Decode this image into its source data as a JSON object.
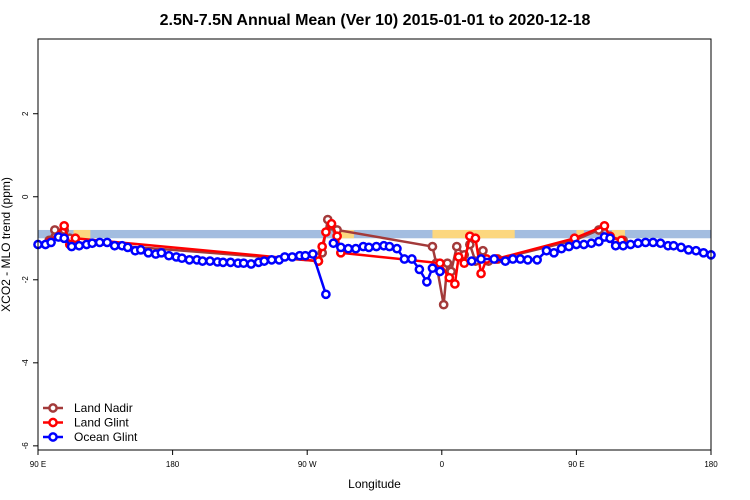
{
  "title": "2.5N-7.5N Annual Mean (Ver 10)   2015-01-01 to 2020-12-18",
  "chart_data": {
    "type": "line",
    "title": "2.5N-7.5N Annual Mean (Ver 10)   2015-01-01 to 2020-12-18",
    "xlabel": "Longitude",
    "ylabel": "XCO2 - MLO trend (ppm)",
    "xlim": [
      -90,
      270
    ],
    "ylim": [
      -6.1,
      3.8
    ],
    "x_ticks": [
      {
        "value": -90,
        "label": "90 E"
      },
      {
        "value": -18,
        "label": "180"
      },
      {
        "value": 54,
        "label": "90 W"
      },
      {
        "value": 126,
        "label": "0"
      },
      {
        "value": 198,
        "label": "90 E"
      },
      {
        "value": 270,
        "label": "180"
      }
    ],
    "y_ticks": [
      {
        "value": -6,
        "label": "-6"
      },
      {
        "value": -4,
        "label": "-4"
      },
      {
        "value": -2,
        "label": "-2"
      },
      {
        "value": 0,
        "label": "0"
      },
      {
        "value": 2,
        "label": "2"
      }
    ],
    "legend_position": "bottom-left",
    "background_band": {
      "y_range": [
        -1.0,
        -0.8
      ],
      "ocean_color": "#a3bde0",
      "land_color": "#fcd77f",
      "land_x_ranges": [
        [
          -71,
          -62
        ],
        [
          70,
          79
        ],
        [
          121,
          165
        ],
        [
          198,
          202
        ],
        [
          217,
          224
        ]
      ]
    },
    "series": [
      {
        "name": "Land Nadir",
        "color": "#a33a3a",
        "points": [
          [
            -84,
            -1.05
          ],
          [
            -81,
            -0.8
          ],
          [
            -76,
            -0.8
          ],
          [
            -73,
            -1.0
          ],
          [
            -70,
            -1.1
          ],
          [
            60,
            -1.55
          ],
          [
            62,
            -1.35
          ],
          [
            65,
            -0.55
          ],
          [
            67,
            -0.7
          ],
          [
            70,
            -0.8
          ],
          [
            121,
            -1.2
          ],
          [
            123,
            -1.6
          ],
          [
            127,
            -2.6
          ],
          [
            129,
            -1.6
          ],
          [
            131,
            -1.8
          ],
          [
            134,
            -1.2
          ],
          [
            138,
            -1.4
          ],
          [
            141,
            -1.15
          ],
          [
            144,
            -1.55
          ],
          [
            148,
            -1.3
          ],
          [
            151,
            -1.55
          ],
          [
            156,
            -1.5
          ],
          [
            197,
            -1.05
          ],
          [
            210,
            -0.8
          ],
          [
            216,
            -1.0
          ],
          [
            219,
            -1.1
          ],
          [
            223,
            -1.05
          ]
        ]
      },
      {
        "name": "Land Glint",
        "color": "#ff0000",
        "points": [
          [
            -84,
            -1.1
          ],
          [
            -76,
            -0.7
          ],
          [
            -73,
            -1.15
          ],
          [
            -70,
            -1.0
          ],
          [
            60,
            -1.55
          ],
          [
            62,
            -1.2
          ],
          [
            64,
            -0.85
          ],
          [
            67,
            -0.65
          ],
          [
            70,
            -0.95
          ],
          [
            72,
            -1.35
          ],
          [
            125,
            -1.6
          ],
          [
            130,
            -1.95
          ],
          [
            133,
            -2.1
          ],
          [
            135,
            -1.45
          ],
          [
            138,
            -1.6
          ],
          [
            141,
            -0.95
          ],
          [
            144,
            -1.0
          ],
          [
            147,
            -1.85
          ],
          [
            150,
            -1.5
          ],
          [
            155,
            -1.5
          ],
          [
            197,
            -1.0
          ],
          [
            213,
            -0.7
          ],
          [
            216,
            -0.95
          ],
          [
            222,
            -1.05
          ]
        ]
      },
      {
        "name": "Ocean Glint",
        "color": "#0000ff",
        "segments": [
          [
            [
              -90,
              -1.15
            ],
            [
              -86,
              -1.15
            ],
            [
              -83,
              -1.1
            ],
            [
              -79,
              -0.97
            ],
            [
              -76,
              -1.0
            ],
            [
              -72,
              -1.2
            ],
            [
              -68,
              -1.18
            ],
            [
              -64,
              -1.15
            ],
            [
              -61,
              -1.12
            ],
            [
              -57,
              -1.1
            ],
            [
              -53,
              -1.1
            ],
            [
              -49,
              -1.18
            ],
            [
              -45,
              -1.18
            ],
            [
              -42,
              -1.22
            ],
            [
              -38,
              -1.3
            ],
            [
              -35,
              -1.28
            ],
            [
              -31,
              -1.35
            ],
            [
              -27,
              -1.38
            ],
            [
              -24,
              -1.35
            ],
            [
              -20,
              -1.42
            ],
            [
              -16,
              -1.45
            ],
            [
              -13,
              -1.48
            ],
            [
              -9,
              -1.52
            ],
            [
              -5,
              -1.52
            ],
            [
              -2,
              -1.55
            ],
            [
              2,
              -1.55
            ],
            [
              6,
              -1.57
            ],
            [
              9,
              -1.58
            ],
            [
              13,
              -1.58
            ],
            [
              17,
              -1.6
            ],
            [
              20,
              -1.6
            ],
            [
              24,
              -1.62
            ],
            [
              28,
              -1.58
            ],
            [
              31,
              -1.55
            ],
            [
              35,
              -1.52
            ],
            [
              39,
              -1.52
            ],
            [
              42,
              -1.45
            ],
            [
              46,
              -1.45
            ],
            [
              50,
              -1.42
            ],
            [
              53,
              -1.42
            ],
            [
              57,
              -1.38
            ],
            [
              64,
              -2.35
            ]
          ],
          [
            [
              68,
              -1.12
            ],
            [
              72,
              -1.22
            ],
            [
              76,
              -1.25
            ],
            [
              80,
              -1.25
            ],
            [
              84,
              -1.2
            ],
            [
              87,
              -1.22
            ],
            [
              91,
              -1.2
            ],
            [
              95,
              -1.18
            ],
            [
              98,
              -1.2
            ],
            [
              102,
              -1.25
            ],
            [
              106,
              -1.5
            ],
            [
              110,
              -1.5
            ],
            [
              114,
              -1.75
            ],
            [
              118,
              -2.05
            ],
            [
              121,
              -1.72
            ],
            [
              125,
              -1.8
            ]
          ],
          [
            [
              142,
              -1.55
            ],
            [
              147,
              -1.5
            ],
            [
              154,
              -1.5
            ],
            [
              160,
              -1.55
            ],
            [
              164,
              -1.5
            ],
            [
              168,
              -1.5
            ],
            [
              172,
              -1.52
            ],
            [
              177,
              -1.52
            ],
            [
              182,
              -1.3
            ],
            [
              186,
              -1.35
            ],
            [
              190,
              -1.25
            ],
            [
              194,
              -1.2
            ],
            [
              198,
              -1.15
            ],
            [
              202,
              -1.15
            ],
            [
              206,
              -1.12
            ],
            [
              210,
              -1.08
            ],
            [
              213,
              -0.97
            ],
            [
              216,
              -1.0
            ],
            [
              219,
              -1.18
            ],
            [
              223,
              -1.18
            ],
            [
              227,
              -1.15
            ],
            [
              231,
              -1.12
            ],
            [
              235,
              -1.1
            ],
            [
              239,
              -1.1
            ],
            [
              243,
              -1.12
            ],
            [
              247,
              -1.18
            ],
            [
              250,
              -1.18
            ],
            [
              254,
              -1.22
            ],
            [
              258,
              -1.28
            ],
            [
              262,
              -1.3
            ],
            [
              266,
              -1.35
            ],
            [
              270,
              -1.4
            ]
          ]
        ]
      }
    ]
  }
}
